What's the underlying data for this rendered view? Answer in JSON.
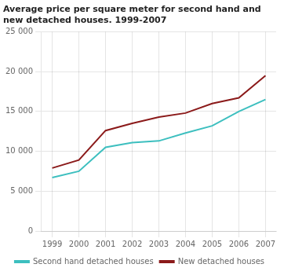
{
  "chart_data": {
    "type": "line",
    "title": [
      "Average price per square meter for second hand and",
      "new detached houses. 1999-2007"
    ],
    "x": [
      1999,
      2000,
      2001,
      2002,
      2003,
      2004,
      2005,
      2006,
      2007
    ],
    "xlim": [
      1998.6,
      2007.4
    ],
    "xticks": [
      1999,
      2000,
      2001,
      2002,
      2003,
      2004,
      2005,
      2006,
      2007
    ],
    "ylim": [
      0,
      25000
    ],
    "yticks": [
      0,
      {
        "value": 5000,
        "label": "5 000"
      },
      {
        "value": 10000,
        "label": "10 000"
      },
      {
        "value": 15000,
        "label": "15 000"
      },
      {
        "value": 20000,
        "label": "20 000"
      },
      {
        "value": 25000,
        "label": "25 000"
      }
    ],
    "series": [
      {
        "name": "Second hand detached houses",
        "color": "#3dbfbf",
        "values": [
          6700,
          7500,
          10500,
          11100,
          11300,
          12300,
          13200,
          15000,
          16500
        ]
      },
      {
        "name": "New detached houses",
        "color": "#8b1a1a",
        "values": [
          7900,
          8900,
          12600,
          13500,
          14300,
          14800,
          16000,
          16700,
          19500
        ]
      }
    ],
    "grid": true,
    "legend": "bottom"
  }
}
